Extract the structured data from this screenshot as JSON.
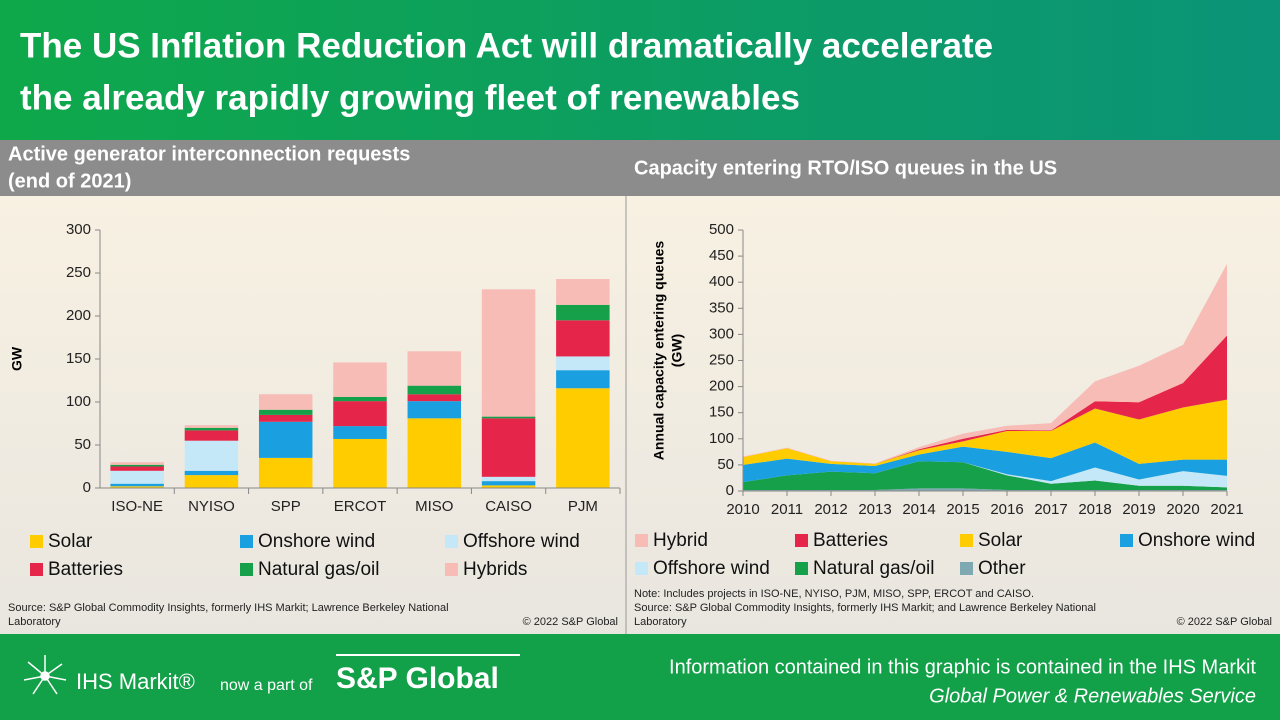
{
  "header": {
    "title": [
      "The US Inflation Reduction Act will dramatically accelerate",
      "the already rapidly growing fleet of renewables"
    ]
  },
  "chart_data": [
    {
      "type": "bar",
      "title": [
        "Active generator interconnection requests",
        "(end of 2021)"
      ],
      "y_label": "GW",
      "categories": [
        "ISO-NE",
        "NYISO",
        "SPP",
        "ERCOT",
        "MISO",
        "CAISO",
        "PJM"
      ],
      "series": [
        {
          "name": "Solar",
          "color": "#ffcc00",
          "values": [
            2,
            15,
            35,
            57,
            81,
            3,
            116
          ]
        },
        {
          "name": "Onshore wind",
          "color": "#1aa0e0",
          "values": [
            3,
            5,
            42,
            15,
            20,
            5,
            21
          ]
        },
        {
          "name": "Offshore wind",
          "color": "#c4e8f8",
          "values": [
            15,
            35,
            0,
            0,
            0,
            5,
            16
          ]
        },
        {
          "name": "Batteries",
          "color": "#e5264a",
          "values": [
            5,
            12,
            8,
            29,
            8,
            68,
            42
          ]
        },
        {
          "name": "Natural gas/oil",
          "color": "#16a04a",
          "values": [
            2,
            3,
            6,
            5,
            10,
            2,
            18
          ]
        },
        {
          "name": "Hybrids",
          "color": "#f7bcb6",
          "values": [
            3,
            3,
            18,
            40,
            40,
            148,
            30
          ]
        }
      ],
      "ylim": [
        0,
        300
      ],
      "yticks": [
        0,
        50,
        100,
        150,
        200,
        250,
        300
      ],
      "grid": false,
      "source": [
        "Source: S&P Global Commodity Insights, formerly IHS Markit; Lawrence Berkeley National",
        "Laboratory"
      ],
      "copyright": "© 2022 S&P Global"
    },
    {
      "type": "area",
      "title": "Capacity entering RTO/ISO queues in the US",
      "y_label": [
        "Annual capacity entering queues",
        "(GW)"
      ],
      "x": [
        2010,
        2011,
        2012,
        2013,
        2014,
        2015,
        2016,
        2017,
        2018,
        2019,
        2020,
        2021
      ],
      "series": [
        {
          "name": "Hybrid",
          "color": "#f7bcb6",
          "values": [
            1,
            1,
            1,
            1,
            4,
            10,
            8,
            14,
            38,
            70,
            73,
            137
          ]
        },
        {
          "name": "Batteries",
          "color": "#e5264a",
          "values": [
            0,
            0,
            0,
            0,
            2,
            5,
            2,
            1,
            14,
            33,
            47,
            123
          ]
        },
        {
          "name": "Solar",
          "color": "#ffcc00",
          "values": [
            15,
            20,
            5,
            4,
            8,
            10,
            40,
            52,
            65,
            85,
            100,
            115
          ]
        },
        {
          "name": "Onshore wind",
          "color": "#1aa0e0",
          "values": [
            33,
            32,
            15,
            14,
            13,
            30,
            43,
            44,
            48,
            30,
            22,
            31
          ]
        },
        {
          "name": "Offshore wind",
          "color": "#c4e8f8",
          "values": [
            0,
            0,
            0,
            0,
            0,
            0,
            2,
            5,
            25,
            12,
            28,
            22
          ]
        },
        {
          "name": "Natural gas/oil",
          "color": "#16a04a",
          "values": [
            15,
            28,
            35,
            32,
            52,
            50,
            28,
            12,
            18,
            8,
            8,
            5
          ]
        },
        {
          "name": "Other",
          "color": "#7fa9b2",
          "values": [
            2,
            2,
            2,
            2,
            5,
            5,
            2,
            2,
            2,
            2,
            2,
            2
          ]
        }
      ],
      "xlim": [
        2010,
        2021
      ],
      "xticks": [
        2010,
        2011,
        2012,
        2013,
        2014,
        2015,
        2016,
        2017,
        2018,
        2019,
        2020,
        2021
      ],
      "ylim": [
        0,
        500
      ],
      "yticks": [
        0,
        50,
        100,
        150,
        200,
        250,
        300,
        350,
        400,
        450,
        500
      ],
      "grid": false,
      "note": [
        "Note: Includes projects in ISO-NE, NYISO, PJM, MISO, SPP, ERCOT and CAISO.",
        "Source: S&P Global Commodity Insights, formerly IHS Markit; and Lawrence Berkeley National",
        "Laboratory"
      ],
      "copyright": "© 2022 S&P Global"
    }
  ],
  "footer": {
    "logo": "IHS Markit®",
    "tagline": "now a part of",
    "brand": "S&P Global",
    "info": [
      "Information contained in this graphic is contained in the IHS Markit",
      "Global Power & Renewables Service"
    ]
  }
}
